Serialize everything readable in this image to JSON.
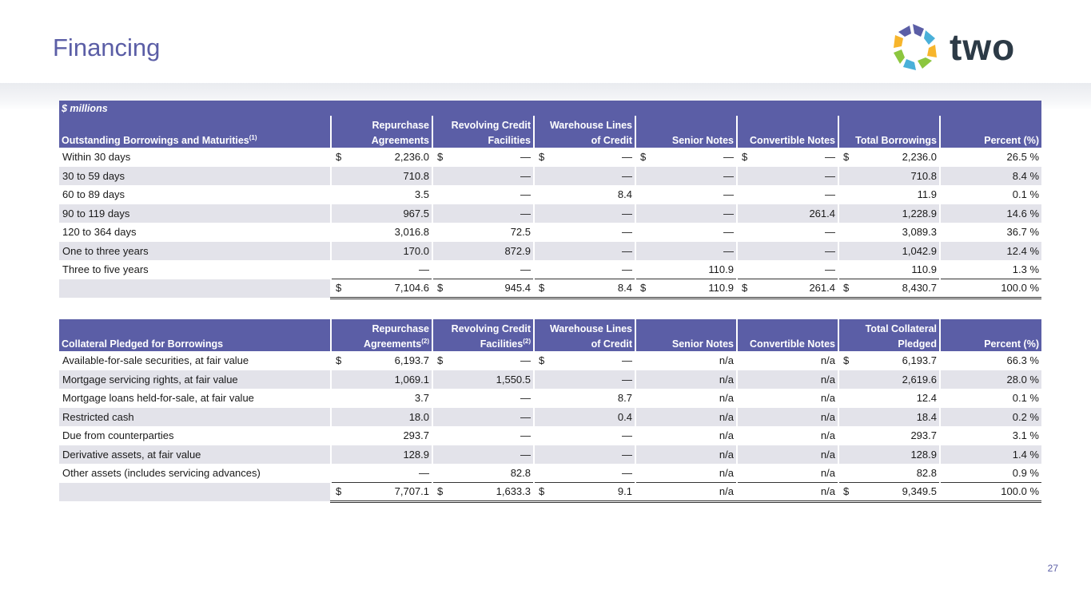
{
  "title": "Financing",
  "logo": {
    "text": "two"
  },
  "page_number": "27",
  "units_label": "$ millions",
  "table1": {
    "header_label": "Outstanding Borrowings and Maturities",
    "header_sup": "(1)",
    "columns": [
      {
        "line1": "Repurchase",
        "line2": "Agreements",
        "sup": ""
      },
      {
        "line1": "Revolving Credit",
        "line2": "Facilities",
        "sup": ""
      },
      {
        "line1": "Warehouse Lines",
        "line2": "of Credit",
        "sup": ""
      },
      {
        "line1": "",
        "line2": "Senior Notes",
        "sup": ""
      },
      {
        "line1": "",
        "line2": "Convertible Notes",
        "sup": ""
      },
      {
        "line1": "",
        "line2": "Total Borrowings",
        "sup": ""
      },
      {
        "line1": "",
        "line2": "Percent (%)",
        "sup": ""
      }
    ],
    "rows": [
      {
        "label": "Within 30 days",
        "dollar": [
          true,
          true,
          true,
          true,
          true,
          true,
          false
        ],
        "values": [
          "2,236.0",
          "—",
          "—",
          "—",
          "—",
          "2,236.0",
          "26.5 %"
        ]
      },
      {
        "label": "30 to 59 days",
        "dollar": [
          false,
          false,
          false,
          false,
          false,
          false,
          false
        ],
        "values": [
          "710.8",
          "—",
          "—",
          "—",
          "—",
          "710.8",
          "8.4 %"
        ]
      },
      {
        "label": "60 to 89 days",
        "dollar": [
          false,
          false,
          false,
          false,
          false,
          false,
          false
        ],
        "values": [
          "3.5",
          "—",
          "8.4",
          "—",
          "—",
          "11.9",
          "0.1 %"
        ]
      },
      {
        "label": "90 to 119 days",
        "dollar": [
          false,
          false,
          false,
          false,
          false,
          false,
          false
        ],
        "values": [
          "967.5",
          "—",
          "—",
          "—",
          "261.4",
          "1,228.9",
          "14.6 %"
        ]
      },
      {
        "label": "120 to 364 days",
        "dollar": [
          false,
          false,
          false,
          false,
          false,
          false,
          false
        ],
        "values": [
          "3,016.8",
          "72.5",
          "—",
          "—",
          "—",
          "3,089.3",
          "36.7 %"
        ]
      },
      {
        "label": "One to three years",
        "dollar": [
          false,
          false,
          false,
          false,
          false,
          false,
          false
        ],
        "values": [
          "170.0",
          "872.9",
          "—",
          "—",
          "—",
          "1,042.9",
          "12.4 %"
        ]
      },
      {
        "label": "Three to five years",
        "dollar": [
          false,
          false,
          false,
          false,
          false,
          false,
          false
        ],
        "values": [
          "—",
          "—",
          "—",
          "110.9",
          "—",
          "110.9",
          "1.3 %"
        ]
      }
    ],
    "total": {
      "label": "",
      "dollar": [
        true,
        true,
        true,
        true,
        true,
        true,
        false
      ],
      "values": [
        "7,104.6",
        "945.4",
        "8.4",
        "110.9",
        "261.4",
        "8,430.7",
        "100.0 %"
      ]
    }
  },
  "table2": {
    "header_label": "Collateral Pledged for Borrowings",
    "header_sup": "",
    "columns": [
      {
        "line1": "Repurchase",
        "line2": "Agreements",
        "sup": "(2)"
      },
      {
        "line1": "Revolving Credit",
        "line2": "Facilities",
        "sup": "(2)"
      },
      {
        "line1": "Warehouse Lines",
        "line2": "of Credit",
        "sup": ""
      },
      {
        "line1": "",
        "line2": "Senior Notes",
        "sup": ""
      },
      {
        "line1": "",
        "line2": "Convertible Notes",
        "sup": ""
      },
      {
        "line1": "Total Collateral",
        "line2": "Pledged",
        "sup": ""
      },
      {
        "line1": "",
        "line2": "Percent (%)",
        "sup": ""
      }
    ],
    "rows": [
      {
        "label": "Available-for-sale securities, at fair value",
        "dollar": [
          true,
          true,
          true,
          false,
          false,
          true,
          false
        ],
        "values": [
          "6,193.7",
          "—",
          "—",
          "n/a",
          "n/a",
          "6,193.7",
          "66.3 %"
        ]
      },
      {
        "label": "Mortgage servicing rights, at fair value",
        "dollar": [
          false,
          false,
          false,
          false,
          false,
          false,
          false
        ],
        "values": [
          "1,069.1",
          "1,550.5",
          "—",
          "n/a",
          "n/a",
          "2,619.6",
          "28.0 %"
        ]
      },
      {
        "label": "Mortgage loans held-for-sale, at fair value",
        "dollar": [
          false,
          false,
          false,
          false,
          false,
          false,
          false
        ],
        "values": [
          "3.7",
          "—",
          "8.7",
          "n/a",
          "n/a",
          "12.4",
          "0.1 %"
        ]
      },
      {
        "label": "Restricted cash",
        "dollar": [
          false,
          false,
          false,
          false,
          false,
          false,
          false
        ],
        "values": [
          "18.0",
          "—",
          "0.4",
          "n/a",
          "n/a",
          "18.4",
          "0.2 %"
        ]
      },
      {
        "label": "Due from counterparties",
        "dollar": [
          false,
          false,
          false,
          false,
          false,
          false,
          false
        ],
        "values": [
          "293.7",
          "—",
          "—",
          "n/a",
          "n/a",
          "293.7",
          "3.1 %"
        ]
      },
      {
        "label": "Derivative assets, at fair value",
        "dollar": [
          false,
          false,
          false,
          false,
          false,
          false,
          false
        ],
        "values": [
          "128.9",
          "—",
          "—",
          "n/a",
          "n/a",
          "128.9",
          "1.4 %"
        ]
      },
      {
        "label": "Other assets (includes servicing advances)",
        "dollar": [
          false,
          false,
          false,
          false,
          false,
          false,
          false
        ],
        "values": [
          "—",
          "82.8",
          "—",
          "n/a",
          "n/a",
          "82.8",
          "0.9 %"
        ]
      }
    ],
    "total": {
      "label": "",
      "dollar": [
        true,
        true,
        true,
        false,
        false,
        true,
        false
      ],
      "values": [
        "7,707.1",
        "1,633.3",
        "9.1",
        "n/a",
        "n/a",
        "9,349.5",
        "100.0 %"
      ]
    }
  }
}
